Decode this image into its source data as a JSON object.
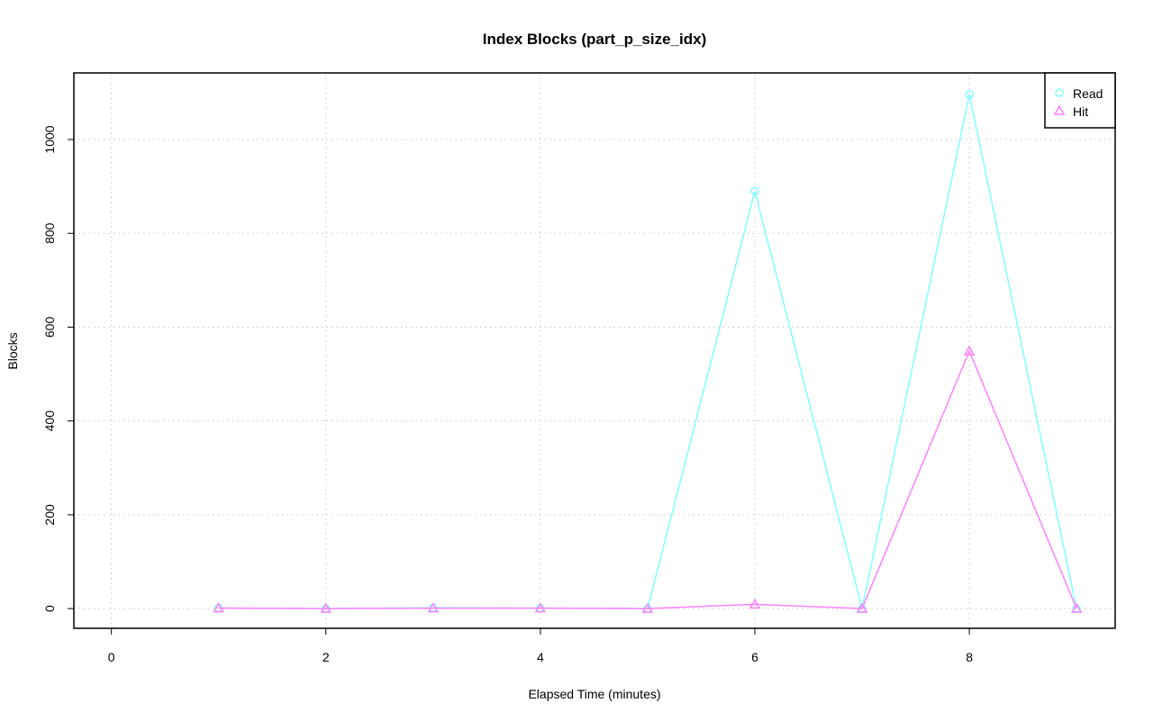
{
  "chart_data": {
    "type": "line",
    "title": "Index Blocks (part_p_size_idx)",
    "xlabel": "Elapsed Time (minutes)",
    "ylabel": "Blocks",
    "x": [
      1,
      2,
      3,
      4,
      5,
      6,
      7,
      8,
      9
    ],
    "series": [
      {
        "name": "Read",
        "values": [
          1,
          0,
          2,
          1,
          0,
          890,
          0,
          1096,
          0
        ],
        "color": "#80ffff",
        "marker": "circle"
      },
      {
        "name": "Hit",
        "values": [
          1,
          0,
          1,
          1,
          0,
          9,
          0,
          549,
          0
        ],
        "color": "#ff80ff",
        "marker": "triangle"
      }
    ],
    "xlim": [
      -0.35,
      9.36
    ],
    "ylim": [
      -42,
      1142
    ],
    "xticks": [
      "0",
      "2",
      "4",
      "6",
      "8"
    ],
    "yticks": [
      "0",
      "200",
      "400",
      "600",
      "800",
      "1000"
    ],
    "grid": true,
    "legend_position": "top-right"
  }
}
